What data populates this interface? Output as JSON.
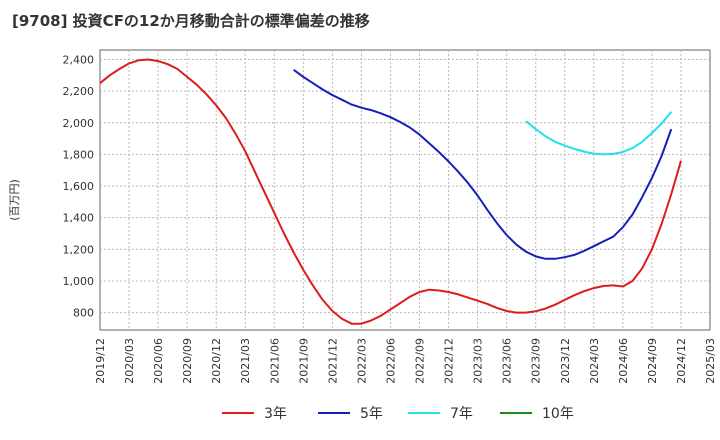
{
  "chart_data": {
    "type": "line",
    "title": "[9708]  投資CFの12か月移動合計の標準偏差の推移",
    "ylabel": "(百万円)",
    "xlabel": "",
    "ylim": [
      690,
      2460
    ],
    "yticks": [
      800,
      1000,
      1200,
      1400,
      1600,
      1800,
      2000,
      2200,
      2400
    ],
    "ytick_labels": [
      "800",
      "1,000",
      "1,200",
      "1,400",
      "1,600",
      "1,800",
      "2,000",
      "2,200",
      "2,400"
    ],
    "xticks": [
      "2019/12",
      "2020/03",
      "2020/06",
      "2020/09",
      "2020/12",
      "2021/03",
      "2021/06",
      "2021/09",
      "2021/12",
      "2022/03",
      "2022/06",
      "2022/09",
      "2022/12",
      "2023/03",
      "2023/06",
      "2023/09",
      "2023/12",
      "2024/03",
      "2024/06",
      "2024/09",
      "2024/12",
      "2025/03"
    ],
    "grid": true,
    "legend_position": "bottom",
    "series": [
      {
        "name": "3年",
        "color": "#dd1c1c",
        "points": [
          [
            "2019/12",
            2250
          ],
          [
            "2020/01",
            2300
          ],
          [
            "2020/02",
            2340
          ],
          [
            "2020/03",
            2375
          ],
          [
            "2020/04",
            2395
          ],
          [
            "2020/05",
            2400
          ],
          [
            "2020/06",
            2390
          ],
          [
            "2020/07",
            2370
          ],
          [
            "2020/08",
            2340
          ],
          [
            "2020/09",
            2290
          ],
          [
            "2020/10",
            2240
          ],
          [
            "2020/11",
            2180
          ],
          [
            "2020/12",
            2110
          ],
          [
            "2021/01",
            2030
          ],
          [
            "2021/02",
            1930
          ],
          [
            "2021/03",
            1820
          ],
          [
            "2021/04",
            1690
          ],
          [
            "2021/05",
            1560
          ],
          [
            "2021/06",
            1430
          ],
          [
            "2021/07",
            1300
          ],
          [
            "2021/08",
            1180
          ],
          [
            "2021/09",
            1070
          ],
          [
            "2021/10",
            970
          ],
          [
            "2021/11",
            880
          ],
          [
            "2021/12",
            810
          ],
          [
            "2022/01",
            760
          ],
          [
            "2022/02",
            730
          ],
          [
            "2022/03",
            730
          ],
          [
            "2022/04",
            750
          ],
          [
            "2022/05",
            780
          ],
          [
            "2022/06",
            820
          ],
          [
            "2022/07",
            860
          ],
          [
            "2022/08",
            900
          ],
          [
            "2022/09",
            930
          ],
          [
            "2022/10",
            945
          ],
          [
            "2022/11",
            940
          ],
          [
            "2022/12",
            930
          ],
          [
            "2023/01",
            915
          ],
          [
            "2023/02",
            895
          ],
          [
            "2023/03",
            875
          ],
          [
            "2023/04",
            855
          ],
          [
            "2023/05",
            830
          ],
          [
            "2023/06",
            810
          ],
          [
            "2023/07",
            800
          ],
          [
            "2023/08",
            800
          ],
          [
            "2023/09",
            808
          ],
          [
            "2023/10",
            825
          ],
          [
            "2023/11",
            850
          ],
          [
            "2023/12",
            880
          ],
          [
            "2024/01",
            910
          ],
          [
            "2024/02",
            935
          ],
          [
            "2024/03",
            955
          ],
          [
            "2024/04",
            968
          ],
          [
            "2024/05",
            972
          ],
          [
            "2024/06",
            965
          ],
          [
            "2024/07",
            1000
          ],
          [
            "2024/08",
            1080
          ],
          [
            "2024/09",
            1200
          ],
          [
            "2024/10",
            1360
          ],
          [
            "2024/11",
            1550
          ],
          [
            "2024/12",
            1760
          ]
        ]
      },
      {
        "name": "5年",
        "color": "#1420b8",
        "points": [
          [
            "2021/08",
            2335
          ],
          [
            "2021/09",
            2290
          ],
          [
            "2021/10",
            2250
          ],
          [
            "2021/11",
            2210
          ],
          [
            "2021/12",
            2175
          ],
          [
            "2022/01",
            2145
          ],
          [
            "2022/02",
            2115
          ],
          [
            "2022/03",
            2095
          ],
          [
            "2022/04",
            2080
          ],
          [
            "2022/05",
            2060
          ],
          [
            "2022/06",
            2035
          ],
          [
            "2022/07",
            2005
          ],
          [
            "2022/08",
            1970
          ],
          [
            "2022/09",
            1925
          ],
          [
            "2022/10",
            1870
          ],
          [
            "2022/11",
            1815
          ],
          [
            "2022/12",
            1755
          ],
          [
            "2023/01",
            1690
          ],
          [
            "2023/02",
            1620
          ],
          [
            "2023/03",
            1540
          ],
          [
            "2023/04",
            1450
          ],
          [
            "2023/05",
            1365
          ],
          [
            "2023/06",
            1290
          ],
          [
            "2023/07",
            1230
          ],
          [
            "2023/08",
            1185
          ],
          [
            "2023/09",
            1155
          ],
          [
            "2023/10",
            1140
          ],
          [
            "2023/11",
            1140
          ],
          [
            "2023/12",
            1150
          ],
          [
            "2024/01",
            1165
          ],
          [
            "2024/02",
            1190
          ],
          [
            "2024/03",
            1220
          ],
          [
            "2024/04",
            1250
          ],
          [
            "2024/05",
            1280
          ],
          [
            "2024/06",
            1340
          ],
          [
            "2024/07",
            1420
          ],
          [
            "2024/08",
            1530
          ],
          [
            "2024/09",
            1650
          ],
          [
            "2024/10",
            1790
          ],
          [
            "2024/11",
            1960
          ]
        ]
      },
      {
        "name": "7年",
        "color": "#22e0ee",
        "points": [
          [
            "2023/08",
            2010
          ],
          [
            "2023/09",
            1960
          ],
          [
            "2023/10",
            1915
          ],
          [
            "2023/11",
            1880
          ],
          [
            "2023/12",
            1855
          ],
          [
            "2024/01",
            1835
          ],
          [
            "2024/02",
            1818
          ],
          [
            "2024/03",
            1805
          ],
          [
            "2024/04",
            1800
          ],
          [
            "2024/05",
            1803
          ],
          [
            "2024/06",
            1815
          ],
          [
            "2024/07",
            1840
          ],
          [
            "2024/08",
            1880
          ],
          [
            "2024/09",
            1935
          ],
          [
            "2024/10",
            1995
          ],
          [
            "2024/11",
            2070
          ]
        ]
      },
      {
        "name": "10年",
        "color": "#1a8c1a",
        "points": []
      }
    ]
  }
}
